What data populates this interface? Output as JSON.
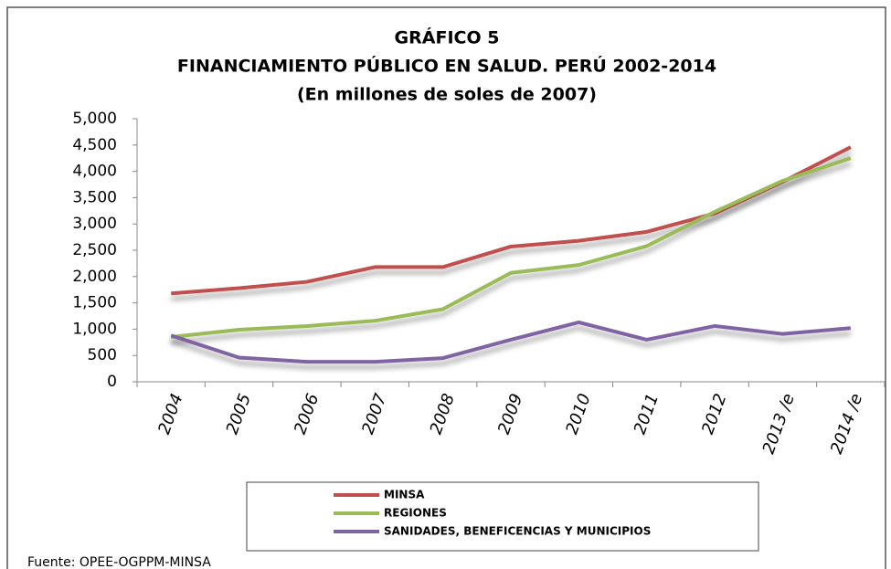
{
  "chart_data": {
    "type": "line",
    "title": "GRÁFICO 5",
    "subtitle": "FINANCIAMIENTO  PÚBLICO EN SALUD. PERÚ 2002-2014",
    "subtitle2": "(En millones de soles de 2007)",
    "categories": [
      "2004",
      "2005",
      "2006",
      "2007",
      "2008",
      "2009",
      "2010",
      "2011",
      "2012",
      "2013 /e",
      "2014 /e"
    ],
    "series": [
      {
        "name": "MINSA",
        "color": "#c0504d",
        "values": [
          1680,
          1780,
          1900,
          2180,
          2180,
          2570,
          2680,
          2850,
          3200,
          3800,
          4460
        ]
      },
      {
        "name": "REGIONES",
        "color": "#9bbb59",
        "values": [
          850,
          990,
          1060,
          1160,
          1380,
          2070,
          2220,
          2580,
          3230,
          3820,
          4250
        ]
      },
      {
        "name": "SANIDADES, BENEFICENCIAS Y MUNICIPIOS",
        "color": "#8064a2",
        "values": [
          880,
          460,
          380,
          380,
          450,
          800,
          1130,
          800,
          1060,
          910,
          1020
        ]
      }
    ],
    "ylim": [
      0,
      5000
    ],
    "yticks": [
      0,
      500,
      {
        "value": 1000,
        "label": "1,000"
      },
      {
        "value": 1500,
        "label": "1,500"
      },
      {
        "value": 2000,
        "label": "2,000"
      },
      {
        "value": 2500,
        "label": "2,500"
      },
      {
        "value": 3000,
        "label": "3,000"
      },
      {
        "value": 3500,
        "label": "3,500"
      },
      {
        "value": 4000,
        "label": "4,000"
      },
      {
        "value": 4500,
        "label": "4,500"
      },
      {
        "value": 5000,
        "label": "5,000"
      }
    ],
    "grid": false,
    "legend": "bottom",
    "source": "Fuente: OPEE-OGPPM-MINSA"
  }
}
